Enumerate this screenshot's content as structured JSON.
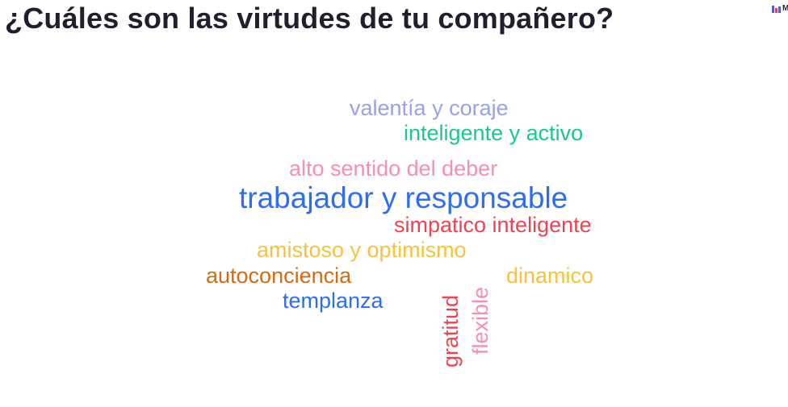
{
  "slide": {
    "title": "¿Cuáles son las virtudes de tu compañero?",
    "logo": {
      "icon": "bar-chart-icon",
      "text": "M",
      "colors": [
        "#4f5fd6",
        "#e0435b",
        "#4f5fd6"
      ]
    }
  },
  "word_cloud": {
    "words": [
      {
        "text": "valentía y coraje",
        "color": "#9aa1e6",
        "orientation": "horizontal"
      },
      {
        "text": "inteligente y activo",
        "color": "#19c98a",
        "orientation": "horizontal"
      },
      {
        "text": "alto sentido del deber",
        "color": "#f58fb3",
        "orientation": "horizontal"
      },
      {
        "text": "trabajador y responsable",
        "color": "#2d6ef0",
        "orientation": "horizontal"
      },
      {
        "text": "simpatico inteligente",
        "color": "#f0424f",
        "orientation": "horizontal"
      },
      {
        "text": "amistoso y optimismo",
        "color": "#f7c33c",
        "orientation": "horizontal"
      },
      {
        "text": "autoconciencia",
        "color": "#d56a10",
        "orientation": "horizontal"
      },
      {
        "text": "dinamico",
        "color": "#f7c33c",
        "orientation": "horizontal"
      },
      {
        "text": "templanza",
        "color": "#2d6ef0",
        "orientation": "horizontal"
      },
      {
        "text": "gratitud",
        "color": "#f0424f",
        "orientation": "vertical"
      },
      {
        "text": "flexible",
        "color": "#f58fb3",
        "orientation": "vertical"
      }
    ]
  }
}
